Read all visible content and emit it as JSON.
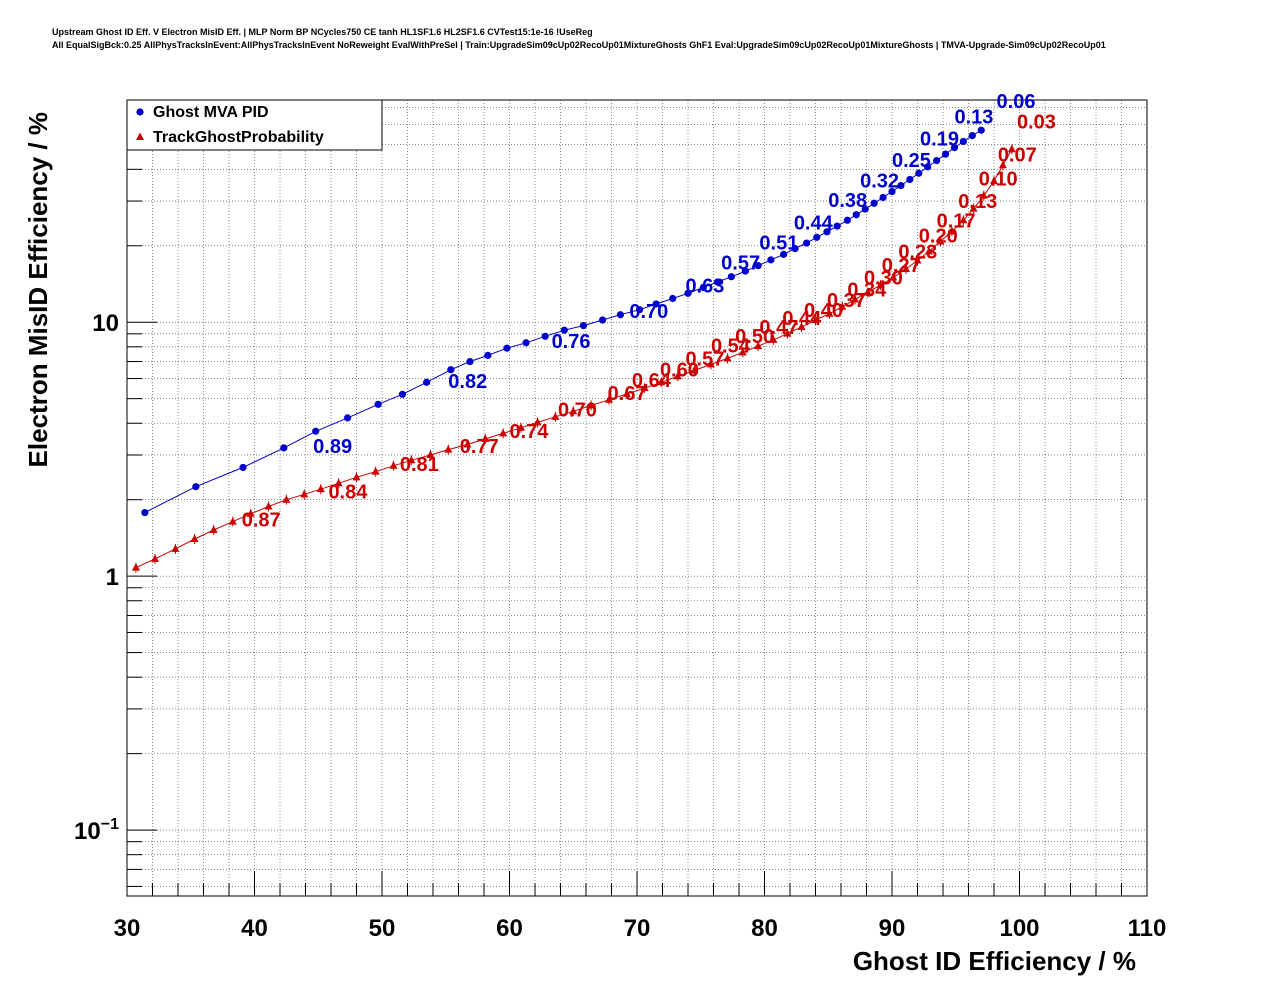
{
  "title_lines": [
    "Upstream Ghost ID Eff. V Electron MisID Eff. | MLP Norm BP NCycles750 CE tanh HL1SF1.6 HL2SF1.6 CVTest15:1e-16 !UseReg",
    "All EqualSigBck:0.25 AllPhysTracksInEvent:AllPhysTracksInEvent NoReweight EvalWithPreSel | Train:UpgradeSim09cUp02RecoUp01MixtureGhosts GhF1 Eval:UpgradeSim09cUp02RecoUp01MixtureGhosts | TMVA-Upgrade-Sim09cUp02RecoUp01"
  ],
  "chart_data": {
    "type": "scatter",
    "xlabel": "Ghost ID Efficiency / %",
    "ylabel": "Electron MisID Efficiency / %",
    "xlim": [
      30,
      110
    ],
    "ylim": [
      0.055,
      75
    ],
    "yscale": "log",
    "grid": true,
    "legend_position": "top-left",
    "x_ticks": [
      "30",
      "40",
      "50",
      "60",
      "70",
      "80",
      "90",
      "100",
      "110"
    ],
    "y_ticks": [
      {
        "value": 0.1,
        "base": "10",
        "exp": "−1"
      },
      {
        "value": 1,
        "base": "1",
        "exp": ""
      },
      {
        "value": 10,
        "base": "10",
        "exp": ""
      }
    ],
    "series": [
      {
        "name": "Ghost MVA PID",
        "color": "#0000cc",
        "marker": "circle",
        "x": [
          31.4,
          35.4,
          39.1,
          42.3,
          44.8,
          47.3,
          49.7,
          51.6,
          53.5,
          55.4,
          56.9,
          58.3,
          59.8,
          61.3,
          62.8,
          64.3,
          65.8,
          67.3,
          68.7,
          70.2,
          71.5,
          72.8,
          74.0,
          75.2,
          76.3,
          77.4,
          78.5,
          79.5,
          80.5,
          81.5,
          82.4,
          83.3,
          84.1,
          84.9,
          85.7,
          86.5,
          87.2,
          87.9,
          88.6,
          89.3,
          90.0,
          90.7,
          91.4,
          92.1,
          92.8,
          93.5,
          94.2,
          94.9,
          95.6,
          96.3,
          97.0
        ],
        "y": [
          1.78,
          2.25,
          2.68,
          3.2,
          3.72,
          4.2,
          4.75,
          5.2,
          5.8,
          6.5,
          7.0,
          7.4,
          7.9,
          8.3,
          8.8,
          9.3,
          9.7,
          10.2,
          10.7,
          11.2,
          11.8,
          12.4,
          13.0,
          13.7,
          14.4,
          15.1,
          15.9,
          16.7,
          17.6,
          18.5,
          19.5,
          20.5,
          21.6,
          22.7,
          23.9,
          25.2,
          26.5,
          27.9,
          29.4,
          31.0,
          32.7,
          34.5,
          36.5,
          38.6,
          40.9,
          43.3,
          45.9,
          48.7,
          51.5,
          54.3,
          57.0
        ],
        "annotations": [
          {
            "label": "0.89",
            "x": 44.6,
            "y": 3.05
          },
          {
            "label": "0.82",
            "x": 55.2,
            "y": 5.5
          },
          {
            "label": "0.76",
            "x": 63.3,
            "y": 7.9
          },
          {
            "label": "0.70",
            "x": 69.4,
            "y": 10.4
          },
          {
            "label": "0.63",
            "x": 73.8,
            "y": 13.1
          },
          {
            "label": "0.57",
            "x": 76.6,
            "y": 16.1
          },
          {
            "label": "0.51",
            "x": 79.6,
            "y": 19.3
          },
          {
            "label": "0.44",
            "x": 82.3,
            "y": 23.2
          },
          {
            "label": "0.38",
            "x": 85.0,
            "y": 28.4
          },
          {
            "label": "0.32",
            "x": 87.5,
            "y": 33.9
          },
          {
            "label": "0.25",
            "x": 90.0,
            "y": 40.8
          },
          {
            "label": "0.19",
            "x": 92.2,
            "y": 49.7
          },
          {
            "label": "0.13",
            "x": 94.9,
            "y": 60.7
          },
          {
            "label": "0.06",
            "x": 98.2,
            "y": 69.9
          }
        ]
      },
      {
        "name": "TrackGhostProbability",
        "color": "#cc0000",
        "marker": "triangle",
        "x": [
          30.7,
          32.2,
          33.8,
          35.3,
          36.8,
          38.3,
          39.7,
          41.1,
          42.5,
          43.9,
          45.2,
          46.6,
          48.0,
          49.5,
          50.9,
          52.3,
          53.8,
          55.2,
          56.7,
          58.1,
          59.5,
          60.9,
          62.2,
          63.6,
          65.0,
          66.4,
          67.8,
          69.2,
          70.6,
          71.9,
          73.2,
          74.5,
          75.8,
          77.1,
          78.3,
          79.5,
          80.7,
          81.8,
          82.9,
          84.0,
          85.1,
          86.1,
          87.1,
          88.1,
          89.1,
          90.1,
          91.1,
          92.0,
          92.9,
          93.8,
          94.7,
          95.6,
          96.4,
          97.2,
          98.0,
          98.7,
          99.4
        ],
        "y": [
          1.08,
          1.17,
          1.28,
          1.4,
          1.52,
          1.64,
          1.76,
          1.88,
          2.0,
          2.1,
          2.2,
          2.32,
          2.45,
          2.58,
          2.72,
          2.86,
          3.0,
          3.15,
          3.3,
          3.47,
          3.65,
          3.84,
          4.03,
          4.24,
          4.46,
          4.7,
          4.95,
          5.22,
          5.5,
          5.8,
          6.12,
          6.46,
          6.82,
          7.2,
          7.61,
          8.05,
          8.52,
          9.02,
          9.57,
          10.2,
          10.8,
          11.5,
          12.3,
          13.1,
          14.0,
          15.0,
          16.2,
          17.5,
          19.0,
          20.8,
          22.8,
          25.2,
          28.0,
          31.5,
          36.0,
          41.5,
          48.0
        ],
        "annotations": [
          {
            "label": "0.87",
            "x": 39.0,
            "y": 1.57
          },
          {
            "label": "0.84",
            "x": 45.8,
            "y": 2.02
          },
          {
            "label": "0.81",
            "x": 51.4,
            "y": 2.6
          },
          {
            "label": "0.77",
            "x": 56.1,
            "y": 3.05
          },
          {
            "label": "0.74",
            "x": 60.0,
            "y": 3.5
          },
          {
            "label": "0.70",
            "x": 63.8,
            "y": 4.25
          },
          {
            "label": "0.67",
            "x": 67.7,
            "y": 4.95
          },
          {
            "label": "0.64",
            "x": 69.6,
            "y": 5.55
          },
          {
            "label": "0.60",
            "x": 71.8,
            "y": 6.1
          },
          {
            "label": "0.57",
            "x": 73.8,
            "y": 6.75
          },
          {
            "label": "0.54",
            "x": 75.8,
            "y": 7.6
          },
          {
            "label": "0.50",
            "x": 77.7,
            "y": 8.3
          },
          {
            "label": "0.47",
            "x": 79.6,
            "y": 9.0
          },
          {
            "label": "0.44",
            "x": 81.4,
            "y": 9.75
          },
          {
            "label": "0.40",
            "x": 83.1,
            "y": 10.5
          },
          {
            "label": "0.37",
            "x": 84.9,
            "y": 11.5
          },
          {
            "label": "0.34",
            "x": 86.5,
            "y": 12.6
          },
          {
            "label": "0.30",
            "x": 87.8,
            "y": 14.1
          },
          {
            "label": "0.27",
            "x": 89.2,
            "y": 15.8
          },
          {
            "label": "0.23",
            "x": 90.5,
            "y": 17.8
          },
          {
            "label": "0.20",
            "x": 92.1,
            "y": 20.6
          },
          {
            "label": "0.17",
            "x": 93.5,
            "y": 23.6
          },
          {
            "label": "0.13",
            "x": 95.2,
            "y": 28.2
          },
          {
            "label": "0.10",
            "x": 96.8,
            "y": 34.5
          },
          {
            "label": "0.07",
            "x": 98.3,
            "y": 43.0
          },
          {
            "label": "0.03",
            "x": 99.8,
            "y": 58.0
          }
        ]
      }
    ]
  }
}
